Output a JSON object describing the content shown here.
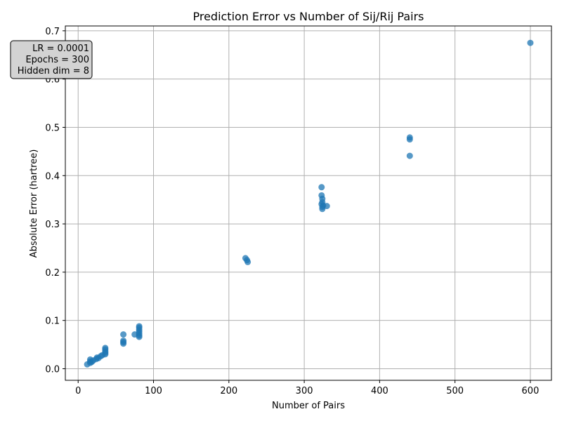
{
  "chart_data": {
    "type": "scatter",
    "title": "Prediction Error vs Number of Sij/Rij Pairs",
    "xlabel": "Number of Pairs",
    "ylabel": "Absolute Error (hartree)",
    "xlim": [
      -17,
      628
    ],
    "ylim": [
      -0.024,
      0.71
    ],
    "xticks": [
      0,
      100,
      200,
      300,
      400,
      500,
      600
    ],
    "yticks": [
      0.0,
      0.1,
      0.2,
      0.3,
      0.4,
      0.5,
      0.6,
      0.7
    ],
    "xtick_labels": [
      "0",
      "100",
      "200",
      "300",
      "400",
      "500",
      "600"
    ],
    "ytick_labels": [
      "0.0",
      "0.1",
      "0.2",
      "0.3",
      "0.4",
      "0.5",
      "0.6",
      "0.7"
    ],
    "grid": true,
    "marker_color": "#1f77b4",
    "marker_alpha": 0.75,
    "annotation": {
      "lines": [
        "LR = 0.0001",
        "Epochs = 300",
        "Hidden dim = 8"
      ],
      "placement": "top-left",
      "background": "#d3d3d3"
    },
    "points": [
      {
        "x": 12,
        "y": 0.009
      },
      {
        "x": 16,
        "y": 0.012
      },
      {
        "x": 16,
        "y": 0.015
      },
      {
        "x": 16,
        "y": 0.019
      },
      {
        "x": 18,
        "y": 0.014
      },
      {
        "x": 20,
        "y": 0.017
      },
      {
        "x": 24,
        "y": 0.02
      },
      {
        "x": 25,
        "y": 0.023
      },
      {
        "x": 27,
        "y": 0.022
      },
      {
        "x": 30,
        "y": 0.026
      },
      {
        "x": 32,
        "y": 0.028
      },
      {
        "x": 36,
        "y": 0.03
      },
      {
        "x": 36,
        "y": 0.033
      },
      {
        "x": 36,
        "y": 0.036
      },
      {
        "x": 36,
        "y": 0.04
      },
      {
        "x": 36,
        "y": 0.043
      },
      {
        "x": 60,
        "y": 0.052
      },
      {
        "x": 60,
        "y": 0.055
      },
      {
        "x": 60,
        "y": 0.058
      },
      {
        "x": 60,
        "y": 0.071
      },
      {
        "x": 75,
        "y": 0.071
      },
      {
        "x": 81,
        "y": 0.066
      },
      {
        "x": 81,
        "y": 0.069
      },
      {
        "x": 81,
        "y": 0.073
      },
      {
        "x": 81,
        "y": 0.077
      },
      {
        "x": 81,
        "y": 0.081
      },
      {
        "x": 81,
        "y": 0.085
      },
      {
        "x": 81,
        "y": 0.088
      },
      {
        "x": 222,
        "y": 0.229
      },
      {
        "x": 224,
        "y": 0.225
      },
      {
        "x": 225,
        "y": 0.221
      },
      {
        "x": 323,
        "y": 0.376
      },
      {
        "x": 323,
        "y": 0.359
      },
      {
        "x": 324,
        "y": 0.352
      },
      {
        "x": 324,
        "y": 0.345
      },
      {
        "x": 323,
        "y": 0.341
      },
      {
        "x": 325,
        "y": 0.338
      },
      {
        "x": 324,
        "y": 0.335
      },
      {
        "x": 324,
        "y": 0.331
      },
      {
        "x": 330,
        "y": 0.337
      },
      {
        "x": 440,
        "y": 0.479
      },
      {
        "x": 440,
        "y": 0.475
      },
      {
        "x": 440,
        "y": 0.441
      },
      {
        "x": 600,
        "y": 0.675
      }
    ]
  }
}
